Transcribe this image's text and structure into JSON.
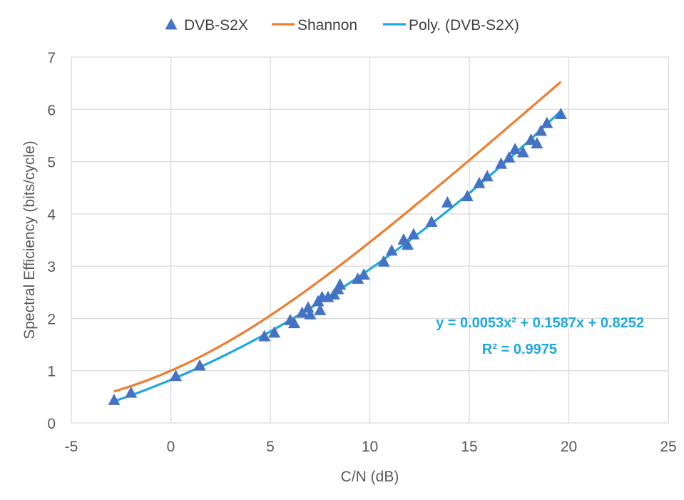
{
  "chart_data": {
    "type": "scatter",
    "xlabel": "C/N (dB)",
    "ylabel": "Spectral Efficiency (bits/cycle)",
    "xlim": [
      -5,
      25
    ],
    "ylim": [
      0,
      7
    ],
    "xticks": [
      -5,
      0,
      5,
      10,
      15,
      20,
      25
    ],
    "yticks": [
      0,
      1,
      2,
      3,
      4,
      5,
      6,
      7
    ],
    "x_tick_labels": [
      "-5",
      "0",
      "5",
      "10",
      "15",
      "20",
      "25"
    ],
    "y_tick_labels": [
      "0",
      "1",
      "2",
      "3",
      "4",
      "5",
      "6",
      "7"
    ],
    "grid": true,
    "legend_position": "top",
    "legend": [
      "DVB-S2X",
      "Shannon",
      "Poly. (DVB-S2X)"
    ],
    "series": [
      {
        "name": "DVB-S2X",
        "kind": "scatter",
        "marker": "triangle",
        "color": "#4472C4",
        "x": [
          -2.85,
          -2.0,
          0.25,
          1.45,
          4.7,
          5.2,
          6.0,
          6.2,
          6.6,
          6.9,
          7.0,
          7.4,
          7.5,
          7.6,
          7.9,
          8.2,
          8.4,
          8.5,
          9.4,
          9.7,
          10.7,
          11.1,
          11.7,
          11.9,
          12.2,
          13.1,
          13.9,
          14.9,
          15.5,
          15.9,
          16.6,
          17.0,
          17.3,
          17.7,
          18.1,
          18.4,
          18.6,
          18.9,
          19.6
        ],
        "y": [
          0.43,
          0.57,
          0.89,
          1.09,
          1.65,
          1.72,
          1.96,
          1.9,
          2.1,
          2.2,
          2.07,
          2.32,
          2.15,
          2.4,
          2.4,
          2.45,
          2.55,
          2.64,
          2.75,
          2.83,
          3.08,
          3.29,
          3.5,
          3.4,
          3.6,
          3.84,
          4.21,
          4.33,
          4.58,
          4.71,
          4.95,
          5.07,
          5.23,
          5.17,
          5.41,
          5.34,
          5.58,
          5.73,
          5.9
        ]
      },
      {
        "name": "Shannon",
        "kind": "line",
        "color": "#ED7D31",
        "formula": "log2(1 + 10^(x/10))",
        "x_range": [
          -2.85,
          19.6
        ]
      },
      {
        "name": "Poly. (DVB-S2X)",
        "kind": "trendline",
        "color": "#1FA8E0",
        "coefficients": {
          "a": 0.0053,
          "b": 0.1587,
          "c": 0.8252
        },
        "x_range": [
          -2.85,
          19.6
        ]
      }
    ],
    "annotations": {
      "equation": "y = 0.0053x² + 0.1587x + 0.8252",
      "r_squared": "R² = 0.9975",
      "color": "#1FA8E0"
    }
  }
}
